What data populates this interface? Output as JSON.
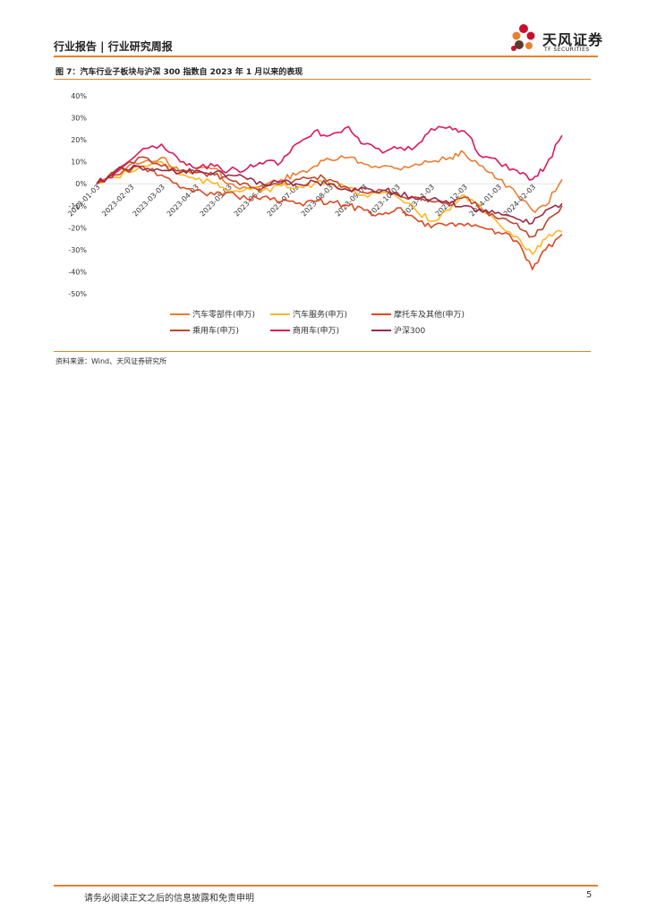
{
  "header": {
    "title": "行业报告 | 行业研究周报"
  },
  "logo": {
    "name": "天风证券",
    "sub": "TF SECURITIES"
  },
  "figure": {
    "title": "图 7：汽车行业子板块与沪深 300 指数自 2023 年 1 月以来的表现"
  },
  "source": "资料来源：Wind、天风证券研究所",
  "footer": {
    "disclaimer": "请务必阅读正文之后的信息披露和免责申明",
    "page": "5"
  },
  "chart_data": {
    "type": "line",
    "title": "",
    "xlabel": "",
    "ylabel": "",
    "ylim": [
      -0.5,
      0.4
    ],
    "y_ticks": [
      0.4,
      0.3,
      0.2,
      0.1,
      0,
      -0.1,
      -0.2,
      -0.3,
      -0.4,
      -0.5
    ],
    "y_tick_labels": [
      "40%",
      "30%",
      "20%",
      "10%",
      "0%",
      "-10%",
      "-20%",
      "-30%",
      "-40%",
      "-50%"
    ],
    "x_ticks": [
      "2023-01-03",
      "2023-02-03",
      "2023-03-03",
      "2023-04-03",
      "2023-05-03",
      "2023-06-03",
      "2023-07-03",
      "2023-08-03",
      "2023-09-03",
      "2023-10-03",
      "2023-11-03",
      "2023-12-03",
      "2024-01-03",
      "2024-02-03"
    ],
    "x_range": [
      "2023-01-03",
      "2024-03-01"
    ],
    "grid": false,
    "legend_position": "bottom",
    "series": [
      {
        "name": "汽车零部件(申万)",
        "color": "#ED7D31",
        "points": [
          [
            "2023-01-03",
            0
          ],
          [
            "2023-01-20",
            0.06
          ],
          [
            "2023-02-10",
            0.09
          ],
          [
            "2023-03-03",
            0.12
          ],
          [
            "2023-03-20",
            0.05
          ],
          [
            "2023-04-03",
            0.06
          ],
          [
            "2023-04-20",
            0.07
          ],
          [
            "2023-05-03",
            0.0
          ],
          [
            "2023-05-20",
            -0.02
          ],
          [
            "2023-06-03",
            -0.01
          ],
          [
            "2023-06-20",
            0.02
          ],
          [
            "2023-07-03",
            0.04
          ],
          [
            "2023-07-20",
            0.08
          ],
          [
            "2023-08-03",
            0.11
          ],
          [
            "2023-08-20",
            0.12
          ],
          [
            "2023-09-03",
            0.09
          ],
          [
            "2023-09-20",
            0.08
          ],
          [
            "2023-10-03",
            0.07
          ],
          [
            "2023-10-20",
            0.09
          ],
          [
            "2023-11-03",
            0.1
          ],
          [
            "2023-11-20",
            0.12
          ],
          [
            "2023-12-03",
            0.14
          ],
          [
            "2023-12-20",
            0.08
          ],
          [
            "2024-01-03",
            0.02
          ],
          [
            "2024-01-20",
            -0.05
          ],
          [
            "2024-02-03",
            -0.12
          ],
          [
            "2024-02-15",
            -0.1
          ],
          [
            "2024-03-01",
            0.02
          ]
        ]
      },
      {
        "name": "汽车服务(申万)",
        "color": "#FFB624",
        "points": [
          [
            "2023-01-03",
            0
          ],
          [
            "2023-01-20",
            0.03
          ],
          [
            "2023-02-10",
            0.07
          ],
          [
            "2023-03-03",
            0.1
          ],
          [
            "2023-03-20",
            0.04
          ],
          [
            "2023-04-03",
            0.02
          ],
          [
            "2023-04-20",
            0.0
          ],
          [
            "2023-05-03",
            -0.03
          ],
          [
            "2023-05-20",
            -0.02
          ],
          [
            "2023-06-03",
            -0.03
          ],
          [
            "2023-06-20",
            -0.01
          ],
          [
            "2023-07-03",
            -0.02
          ],
          [
            "2023-07-20",
            0.0
          ],
          [
            "2023-08-03",
            0.0
          ],
          [
            "2023-08-20",
            -0.02
          ],
          [
            "2023-09-03",
            -0.05
          ],
          [
            "2023-09-20",
            -0.04
          ],
          [
            "2023-10-03",
            -0.06
          ],
          [
            "2023-10-20",
            -0.12
          ],
          [
            "2023-11-03",
            -0.17
          ],
          [
            "2023-11-20",
            -0.12
          ],
          [
            "2023-12-03",
            -0.05
          ],
          [
            "2023-12-20",
            -0.12
          ],
          [
            "2024-01-03",
            -0.18
          ],
          [
            "2024-01-20",
            -0.24
          ],
          [
            "2024-02-03",
            -0.32
          ],
          [
            "2024-02-15",
            -0.25
          ],
          [
            "2024-03-01",
            -0.22
          ]
        ]
      },
      {
        "name": "摩托车及其他(申万)",
        "color": "#E0481F",
        "points": [
          [
            "2023-01-03",
            0
          ],
          [
            "2023-01-20",
            0.04
          ],
          [
            "2023-02-10",
            0.08
          ],
          [
            "2023-03-03",
            0.04
          ],
          [
            "2023-03-20",
            -0.02
          ],
          [
            "2023-04-03",
            -0.03
          ],
          [
            "2023-04-20",
            -0.05
          ],
          [
            "2023-05-03",
            -0.04
          ],
          [
            "2023-05-20",
            -0.07
          ],
          [
            "2023-06-03",
            -0.06
          ],
          [
            "2023-06-20",
            -0.08
          ],
          [
            "2023-07-03",
            -0.09
          ],
          [
            "2023-07-20",
            -0.08
          ],
          [
            "2023-08-03",
            -0.08
          ],
          [
            "2023-08-20",
            -0.1
          ],
          [
            "2023-09-03",
            -0.12
          ],
          [
            "2023-09-20",
            -0.14
          ],
          [
            "2023-10-03",
            -0.11
          ],
          [
            "2023-10-20",
            -0.16
          ],
          [
            "2023-11-03",
            -0.2
          ],
          [
            "2023-11-20",
            -0.18
          ],
          [
            "2023-12-03",
            -0.19
          ],
          [
            "2023-12-20",
            -0.2
          ],
          [
            "2024-01-03",
            -0.22
          ],
          [
            "2024-01-20",
            -0.26
          ],
          [
            "2024-02-03",
            -0.39
          ],
          [
            "2024-02-15",
            -0.3
          ],
          [
            "2024-03-01",
            -0.23
          ]
        ]
      },
      {
        "name": "乘用车(申万)",
        "color": "#C0462A",
        "points": [
          [
            "2023-01-03",
            0
          ],
          [
            "2023-01-20",
            0.05
          ],
          [
            "2023-02-10",
            0.12
          ],
          [
            "2023-03-03",
            0.08
          ],
          [
            "2023-03-20",
            0.06
          ],
          [
            "2023-04-03",
            0.05
          ],
          [
            "2023-04-20",
            0.04
          ],
          [
            "2023-05-03",
            0.02
          ],
          [
            "2023-05-20",
            0.0
          ],
          [
            "2023-06-03",
            -0.02
          ],
          [
            "2023-06-20",
            0.0
          ],
          [
            "2023-07-03",
            0.02
          ],
          [
            "2023-07-20",
            0.03
          ],
          [
            "2023-08-03",
            0.02
          ],
          [
            "2023-08-20",
            -0.02
          ],
          [
            "2023-09-03",
            -0.04
          ],
          [
            "2023-09-20",
            -0.03
          ],
          [
            "2023-10-03",
            -0.05
          ],
          [
            "2023-10-20",
            -0.06
          ],
          [
            "2023-11-03",
            -0.08
          ],
          [
            "2023-11-20",
            -0.1
          ],
          [
            "2023-12-03",
            -0.06
          ],
          [
            "2023-12-20",
            -0.12
          ],
          [
            "2024-01-03",
            -0.16
          ],
          [
            "2024-01-20",
            -0.18
          ],
          [
            "2024-02-03",
            -0.24
          ],
          [
            "2024-02-15",
            -0.18
          ],
          [
            "2024-03-01",
            -0.1
          ]
        ]
      },
      {
        "name": "商用车(申万)",
        "color": "#E01858",
        "points": [
          [
            "2023-01-03",
            0
          ],
          [
            "2023-01-20",
            0.05
          ],
          [
            "2023-02-10",
            0.14
          ],
          [
            "2023-03-03",
            0.18
          ],
          [
            "2023-03-20",
            0.1
          ],
          [
            "2023-04-03",
            0.07
          ],
          [
            "2023-04-20",
            0.08
          ],
          [
            "2023-05-03",
            0.06
          ],
          [
            "2023-05-20",
            0.07
          ],
          [
            "2023-06-03",
            0.09
          ],
          [
            "2023-06-20",
            0.1
          ],
          [
            "2023-07-03",
            0.18
          ],
          [
            "2023-07-20",
            0.24
          ],
          [
            "2023-08-03",
            0.22
          ],
          [
            "2023-08-20",
            0.26
          ],
          [
            "2023-09-03",
            0.18
          ],
          [
            "2023-09-20",
            0.14
          ],
          [
            "2023-10-03",
            0.16
          ],
          [
            "2023-10-20",
            0.17
          ],
          [
            "2023-11-03",
            0.25
          ],
          [
            "2023-11-20",
            0.26
          ],
          [
            "2023-12-03",
            0.24
          ],
          [
            "2023-12-20",
            0.12
          ],
          [
            "2024-01-03",
            0.1
          ],
          [
            "2024-01-20",
            0.06
          ],
          [
            "2024-02-03",
            0.02
          ],
          [
            "2024-02-15",
            0.08
          ],
          [
            "2024-03-01",
            0.22
          ]
        ]
      },
      {
        "name": "沪深300",
        "color": "#9B2B49",
        "points": [
          [
            "2023-01-03",
            0
          ],
          [
            "2023-01-20",
            0.06
          ],
          [
            "2023-02-10",
            0.08
          ],
          [
            "2023-03-03",
            0.06
          ],
          [
            "2023-03-20",
            0.05
          ],
          [
            "2023-04-03",
            0.06
          ],
          [
            "2023-04-20",
            0.05
          ],
          [
            "2023-05-03",
            0.04
          ],
          [
            "2023-05-20",
            0.02
          ],
          [
            "2023-06-03",
            0.0
          ],
          [
            "2023-06-20",
            0.01
          ],
          [
            "2023-07-03",
            0.0
          ],
          [
            "2023-07-20",
            0.01
          ],
          [
            "2023-08-03",
            0.0
          ],
          [
            "2023-08-20",
            -0.03
          ],
          [
            "2023-09-03",
            -0.02
          ],
          [
            "2023-09-20",
            -0.03
          ],
          [
            "2023-10-03",
            -0.04
          ],
          [
            "2023-10-20",
            -0.07
          ],
          [
            "2023-11-03",
            -0.07
          ],
          [
            "2023-11-20",
            -0.09
          ],
          [
            "2023-12-03",
            -0.1
          ],
          [
            "2023-12-20",
            -0.13
          ],
          [
            "2024-01-03",
            -0.13
          ],
          [
            "2024-01-20",
            -0.16
          ],
          [
            "2024-02-03",
            -0.18
          ],
          [
            "2024-02-15",
            -0.12
          ],
          [
            "2024-03-01",
            -0.09
          ]
        ]
      }
    ]
  }
}
